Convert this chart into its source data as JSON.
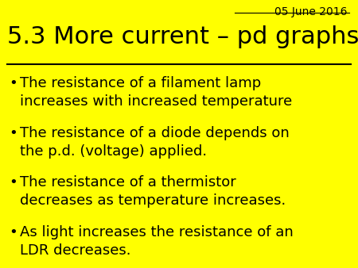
{
  "background_color": "#FFFF00",
  "date_text": "05 June 2016",
  "title_text": "5.3 More current – pd graphs",
  "title_color": "#000000",
  "title_fontsize": 22,
  "date_fontsize": 10,
  "bullet_fontsize": 13.0,
  "bullet_color": "#000000",
  "bullets": [
    "The resistance of a filament lamp\nincreases with increased temperature",
    "The resistance of a diode depends on\nthe p.d. (voltage) applied.",
    "The resistance of a thermistor\ndecreases as temperature increases.",
    "As light increases the resistance of an\nLDR decreases."
  ]
}
